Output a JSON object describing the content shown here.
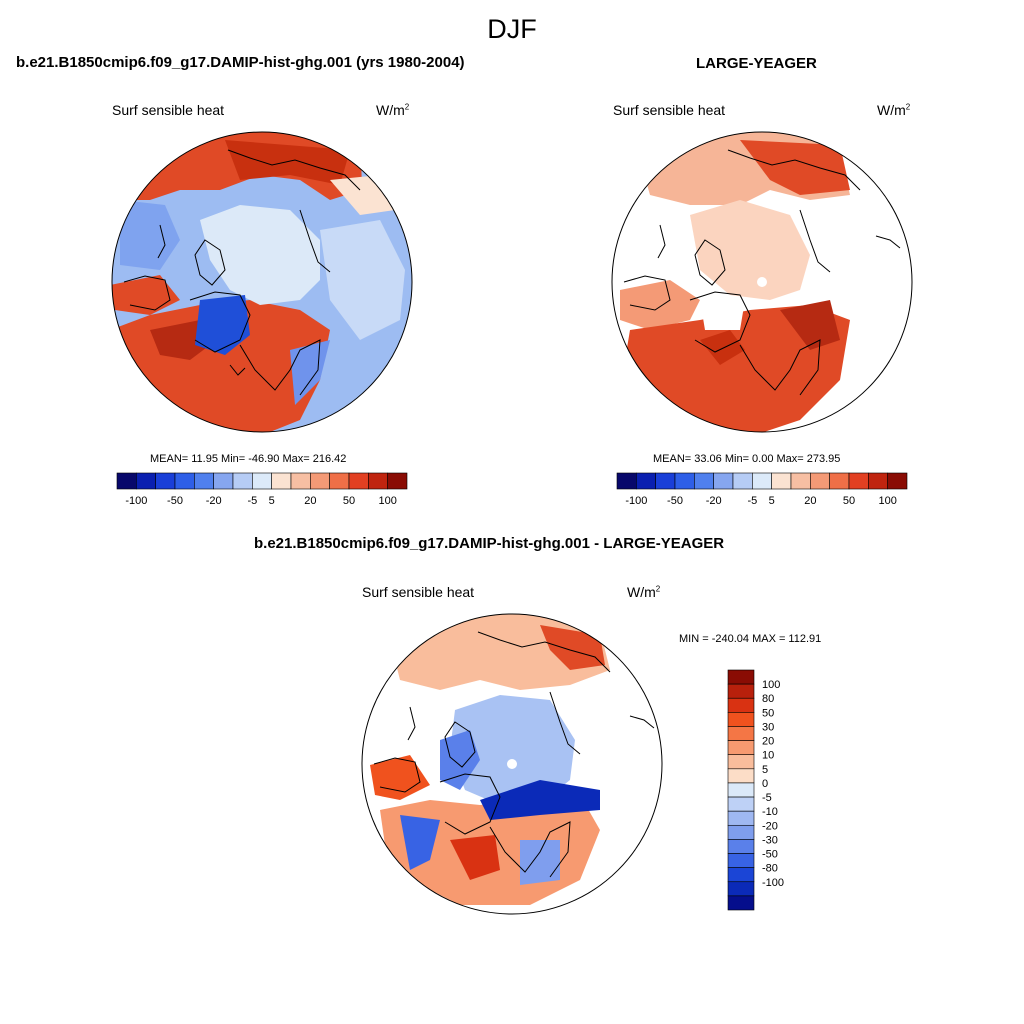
{
  "figure": {
    "season": "DJF"
  },
  "panels": [
    {
      "title": "b.e21.B1850cmip6.f09_g17.DAMIP-hist-ghg.001 (yrs 1980-2004)",
      "variable": "Surf sensible heat",
      "units_base": "W/m",
      "units_exp": "2",
      "stats": "MEAN=  11.95  Min= -46.90  Max= 216.42"
    },
    {
      "title": "LARGE-YEAGER",
      "variable": "Surf sensible heat",
      "units_base": "W/m",
      "units_exp": "2",
      "stats": "MEAN=  33.06  Min=   0.00  Max= 273.95"
    },
    {
      "title": "b.e21.B1850cmip6.f09_g17.DAMIP-hist-ghg.001 - LARGE-YEAGER",
      "variable": "Surf sensible heat",
      "units_base": "W/m",
      "units_exp": "2",
      "stats": "MIN = -240.04 MAX = 112.91"
    }
  ],
  "colorbar_h": {
    "colors": [
      "#08086b",
      "#0a1fb0",
      "#1a3fd8",
      "#2e5fe8",
      "#5080ee",
      "#86a6f0",
      "#b6ccf5",
      "#dceaf9",
      "#fbe3d2",
      "#f7bfa3",
      "#f49a76",
      "#ef6f47",
      "#e24022",
      "#c0240f",
      "#8a0c04"
    ],
    "ticks": [
      "-100",
      "-50",
      "-20",
      "-5",
      "5",
      "20",
      "50",
      "100"
    ]
  },
  "colorbar_v": {
    "colors": [
      "#8a0c04",
      "#b8200c",
      "#d93212",
      "#f0521e",
      "#f47645",
      "#f79a70",
      "#f9bd9c",
      "#fcddc7",
      "#dbe9f9",
      "#bed1f6",
      "#9fb8f2",
      "#7f9eee",
      "#5a80ea",
      "#3863e4",
      "#1b45d6",
      "#0b2ab8",
      "#050e8c"
    ],
    "labels": [
      "100",
      "80",
      "50",
      "30",
      "20",
      "10",
      "5",
      "0",
      "-5",
      "-10",
      "-20",
      "-30",
      "-50",
      "-80",
      "-100"
    ]
  }
}
